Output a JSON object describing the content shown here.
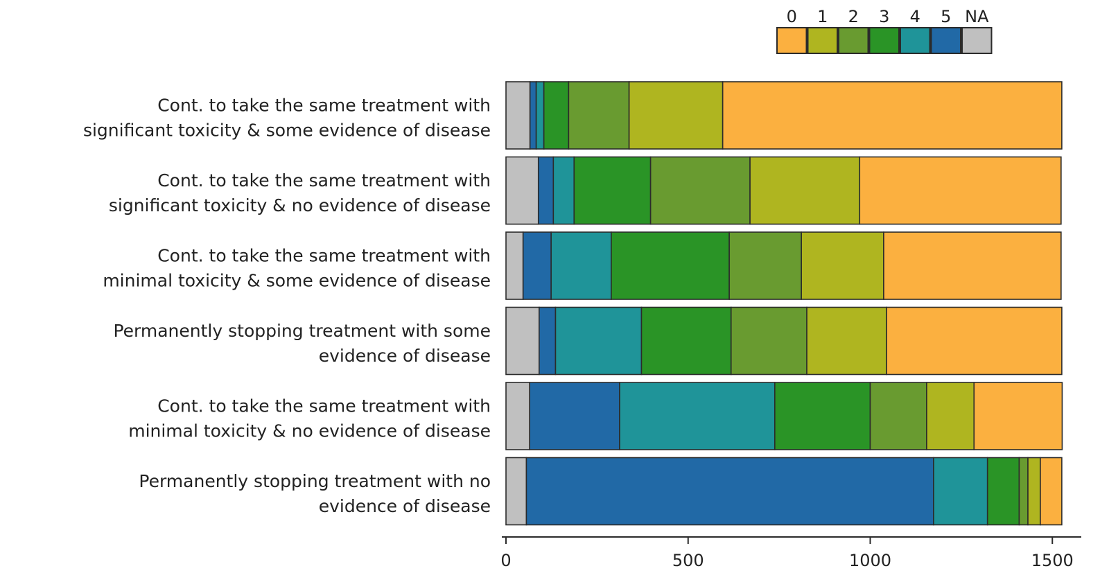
{
  "chart_data": {
    "type": "bar",
    "orientation": "horizontal",
    "stacked": true,
    "categories": [
      [
        "Cont. to take the same treatment with",
        "significant toxicity & some evidence of disease"
      ],
      [
        "Cont. to take the same treatment with",
        "significant toxicity & no evidence of disease"
      ],
      [
        "Cont. to take the same treatment with",
        "minimal toxicity & some evidence of disease"
      ],
      [
        "Permanently stopping treatment with some",
        "evidence of disease"
      ],
      [
        "Cont. to take the same treatment with",
        "minimal toxicity & no evidence of disease"
      ],
      [
        "Permanently stopping treatment with no",
        "evidence of disease"
      ]
    ],
    "series": [
      {
        "name": "NA",
        "color": "#c0c0c0",
        "values": [
          66,
          89,
          47,
          91,
          65,
          56
        ]
      },
      {
        "name": "5",
        "color": "#2169a6",
        "values": [
          17,
          41,
          77,
          45,
          247,
          1118
        ]
      },
      {
        "name": "4",
        "color": "#1f9499",
        "values": [
          21,
          57,
          165,
          236,
          426,
          148
        ]
      },
      {
        "name": "3",
        "color": "#2a9426",
        "values": [
          68,
          210,
          324,
          246,
          262,
          87
        ]
      },
      {
        "name": "2",
        "color": "#699b30",
        "values": [
          166,
          273,
          198,
          208,
          155,
          24
        ]
      },
      {
        "name": "1",
        "color": "#afb520",
        "values": [
          257,
          301,
          226,
          219,
          130,
          34
        ]
      },
      {
        "name": "0",
        "color": "#fbb040",
        "values": [
          931,
          553,
          487,
          481,
          242,
          59
        ]
      }
    ],
    "legend": {
      "position": "top-right",
      "order": [
        "0",
        "1",
        "2",
        "3",
        "4",
        "5",
        "NA"
      ]
    },
    "xticks": [
      "0",
      "500",
      "1000",
      "1500"
    ],
    "xlim": [
      0,
      1580
    ],
    "grid": false,
    "title": "",
    "xlabel": "",
    "ylabel": ""
  }
}
